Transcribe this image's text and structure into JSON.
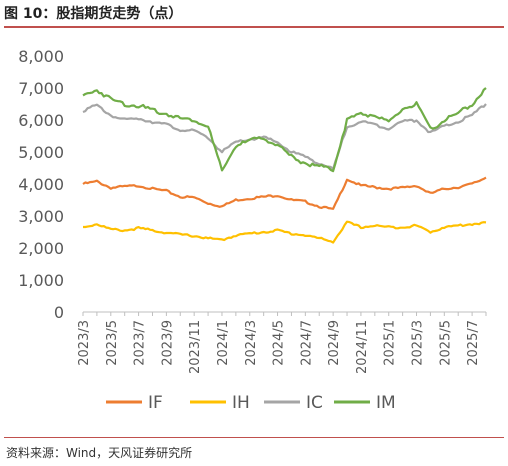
{
  "title": "图 10：股指期货走势（点）",
  "source": "资料来源：Wind，天风证券研究所",
  "colors": {
    "IF": "#ed7d31",
    "IH": "#ffc000",
    "IC": "#a5a5a5",
    "IM": "#70ad47",
    "axis": "#bfbfbf",
    "text": "#595959",
    "rule": "#c0504d"
  },
  "chart_data": {
    "type": "line",
    "title": "图 10：股指期货走势（点）",
    "xlabel": "",
    "ylabel": "",
    "ylim": [
      0,
      8000
    ],
    "yticks": [
      "0",
      "1,000",
      "2,000",
      "3,000",
      "4,000",
      "5,000",
      "6,000",
      "7,000",
      "8,000"
    ],
    "xticks": [
      "2023/3",
      "2023/5",
      "2023/7",
      "2023/9",
      "2023/11",
      "2024/1",
      "2024/3",
      "2024/5",
      "2024/7",
      "2024/9",
      "2024/11",
      "2025/1",
      "2025/3",
      "2025/5",
      "2025/7"
    ],
    "grid": false,
    "legend": "bottom",
    "x": [
      "2023/3",
      "2023/4",
      "2023/5",
      "2023/6",
      "2023/7",
      "2023/8",
      "2023/9",
      "2023/10",
      "2023/11",
      "2023/12",
      "2024/1",
      "2024/2",
      "2024/3",
      "2024/4",
      "2024/5",
      "2024/6",
      "2024/7",
      "2024/8",
      "2024/9",
      "2024/10",
      "2024/11",
      "2024/12",
      "2025/1",
      "2025/2",
      "2025/3",
      "2025/4",
      "2025/5",
      "2025/6",
      "2025/7",
      "2025/8"
    ],
    "series": [
      {
        "name": "IF",
        "values": [
          4000,
          4080,
          3880,
          3920,
          3950,
          3850,
          3780,
          3600,
          3580,
          3400,
          3300,
          3500,
          3550,
          3600,
          3650,
          3500,
          3450,
          3300,
          3200,
          4150,
          3950,
          3900,
          3850,
          3880,
          3950,
          3700,
          3850,
          3900,
          4000,
          4200
        ]
      },
      {
        "name": "IH",
        "values": [
          2650,
          2750,
          2580,
          2550,
          2620,
          2550,
          2480,
          2420,
          2380,
          2300,
          2250,
          2400,
          2450,
          2500,
          2550,
          2450,
          2400,
          2300,
          2200,
          2800,
          2650,
          2700,
          2650,
          2650,
          2700,
          2500,
          2650,
          2700,
          2750,
          2800
        ]
      },
      {
        "name": "IC",
        "values": [
          6300,
          6450,
          6150,
          6000,
          6050,
          5950,
          5850,
          5700,
          5650,
          5450,
          5000,
          5300,
          5400,
          5450,
          5300,
          5000,
          4850,
          4650,
          4450,
          5800,
          5950,
          5850,
          5750,
          5950,
          6000,
          5600,
          5800,
          5950,
          6150,
          6500
        ]
      },
      {
        "name": "IM",
        "values": [
          6750,
          6950,
          6650,
          6500,
          6450,
          6300,
          6200,
          6050,
          6000,
          5800,
          4400,
          5200,
          5350,
          5450,
          5200,
          4850,
          4650,
          4550,
          4450,
          6000,
          6200,
          6150,
          5900,
          6350,
          6500,
          5700,
          6000,
          6200,
          6500,
          7000
        ]
      }
    ]
  }
}
